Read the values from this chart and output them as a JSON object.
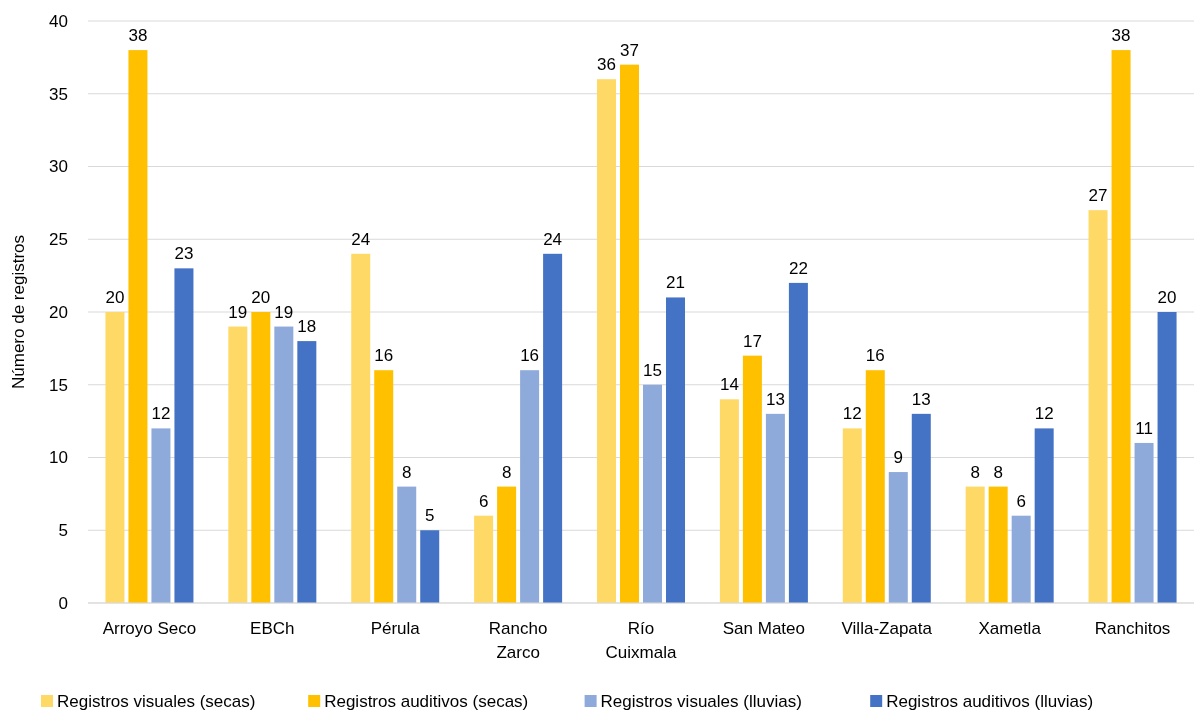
{
  "chart_data": {
    "type": "bar",
    "ylabel": "Número de registros",
    "categories": [
      "Arroyo Seco",
      "EBCh",
      "Pérula",
      "Rancho Zarco",
      "Río Cuixmala",
      "San Mateo",
      "Villa-Zapata",
      "Xametla",
      "Ranchitos"
    ],
    "series": [
      {
        "name": "Registros visuales (secas)",
        "color": "#ffd966",
        "values": [
          20,
          19,
          24,
          6,
          36,
          14,
          12,
          8,
          27
        ]
      },
      {
        "name": "Registros auditivos (secas)",
        "color": "#ffc000",
        "values": [
          38,
          20,
          16,
          8,
          37,
          17,
          16,
          8,
          38
        ]
      },
      {
        "name": "Registros visuales (lluvias)",
        "color": "#8eaadb",
        "values": [
          12,
          19,
          8,
          16,
          15,
          13,
          9,
          6,
          11
        ]
      },
      {
        "name": "Registros auditivos (lluvias)",
        "color": "#4472c4",
        "values": [
          23,
          18,
          5,
          24,
          21,
          22,
          13,
          12,
          20
        ]
      }
    ],
    "ylim": [
      0,
      40
    ],
    "yticks": [
      0,
      5,
      10,
      15,
      20,
      25,
      30,
      35,
      40
    ],
    "grid": "y",
    "legend": "bottom",
    "data_labels": true
  }
}
